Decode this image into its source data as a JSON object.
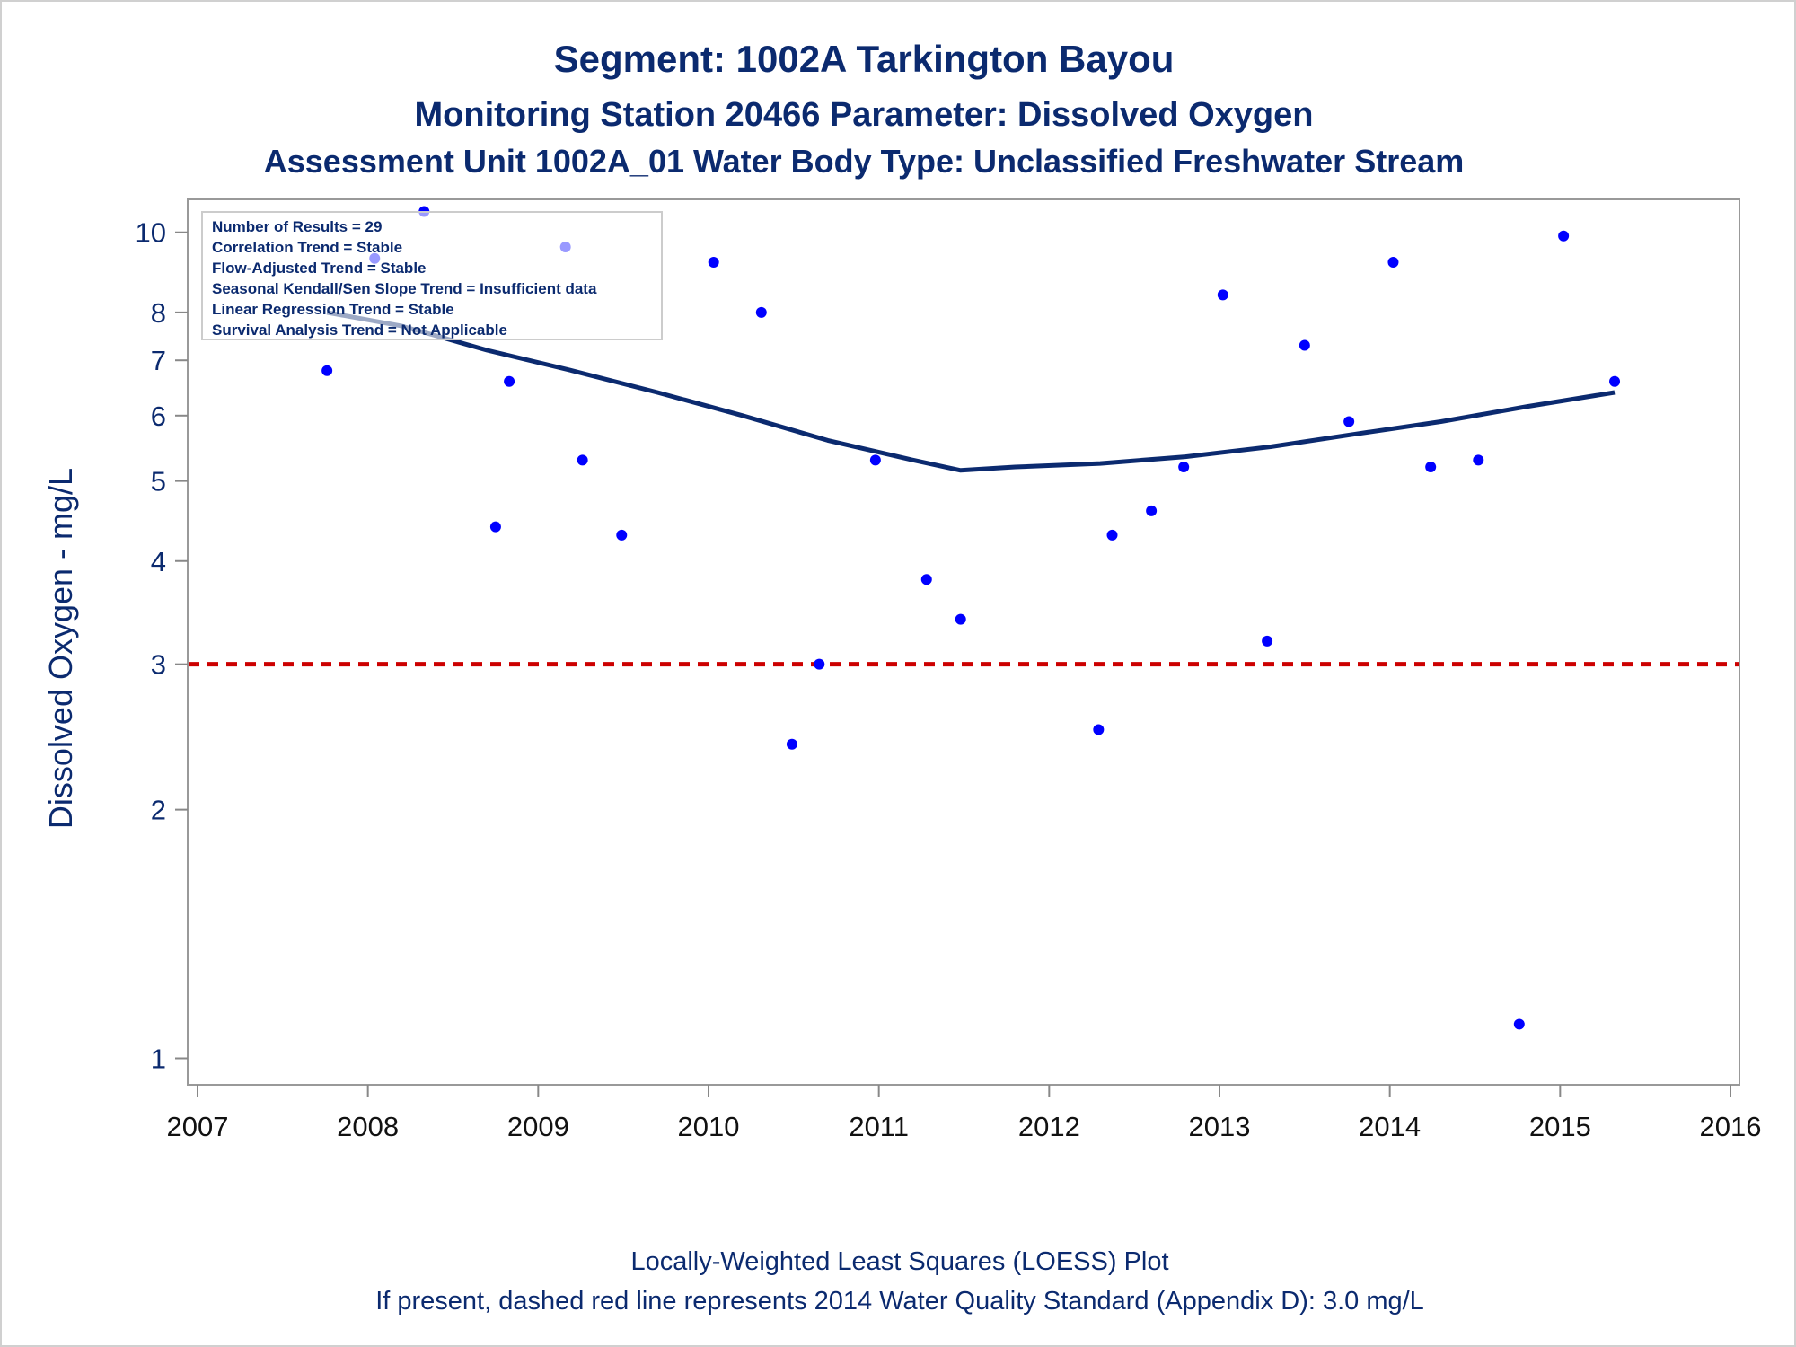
{
  "titles": {
    "line1": "Segment: 1002A  Tarkington Bayou",
    "line2": "Monitoring Station 20466 Parameter: Dissolved Oxygen",
    "line3": "Assessment Unit 1002A_01   Water Body Type: Unclassified Freshwater Stream"
  },
  "footnotes": {
    "line1": "Locally-Weighted Least Squares (LOESS) Plot",
    "line2": "If present, dashed red line represents 2014 Water Quality Standard (Appendix D): 3.0 mg/L"
  },
  "stats_box": [
    "Number of Results = 29",
    "Correlation Trend = Stable",
    "Flow-Adjusted Trend = Stable",
    "Seasonal Kendall/Sen Slope Trend = Insufficient data",
    "Linear Regression Trend = Stable",
    "Survival Analysis Trend = Not Applicable"
  ],
  "chart_data": {
    "type": "scatter",
    "ylabel": "Dissolved Oxygen - mg/L",
    "xlabel": "",
    "y_scale": "log",
    "xlim": [
      2007,
      2016
    ],
    "ylim": [
      0.95,
      10.8
    ],
    "x_ticks": [
      "2007",
      "2008",
      "2009",
      "2010",
      "2011",
      "2012",
      "2013",
      "2014",
      "2015",
      "2016"
    ],
    "y_ticks": [
      1,
      2,
      3,
      4,
      5,
      6,
      7,
      8,
      10
    ],
    "grid": false,
    "legend_placement": "top-left",
    "points": [
      {
        "x": 2007.76,
        "y": 6.8
      },
      {
        "x": 2008.04,
        "y": 9.3
      },
      {
        "x": 2008.33,
        "y": 10.6
      },
      {
        "x": 2008.75,
        "y": 4.4
      },
      {
        "x": 2008.83,
        "y": 6.6
      },
      {
        "x": 2009.16,
        "y": 9.6
      },
      {
        "x": 2009.26,
        "y": 5.3
      },
      {
        "x": 2009.49,
        "y": 4.3
      },
      {
        "x": 2010.03,
        "y": 9.2
      },
      {
        "x": 2010.31,
        "y": 8.0
      },
      {
        "x": 2010.49,
        "y": 2.4
      },
      {
        "x": 2010.65,
        "y": 3.0
      },
      {
        "x": 2010.98,
        "y": 5.3
      },
      {
        "x": 2011.28,
        "y": 3.8
      },
      {
        "x": 2011.48,
        "y": 3.4
      },
      {
        "x": 2012.29,
        "y": 2.5
      },
      {
        "x": 2012.37,
        "y": 4.3
      },
      {
        "x": 2012.6,
        "y": 4.6
      },
      {
        "x": 2012.79,
        "y": 5.2
      },
      {
        "x": 2013.02,
        "y": 8.4
      },
      {
        "x": 2013.28,
        "y": 3.2
      },
      {
        "x": 2013.5,
        "y": 7.3
      },
      {
        "x": 2013.76,
        "y": 5.9
      },
      {
        "x": 2014.02,
        "y": 9.2
      },
      {
        "x": 2014.24,
        "y": 5.2
      },
      {
        "x": 2014.52,
        "y": 5.3
      },
      {
        "x": 2014.76,
        "y": 1.1
      },
      {
        "x": 2015.02,
        "y": 9.9
      },
      {
        "x": 2015.32,
        "y": 6.6
      }
    ],
    "loess": [
      {
        "x": 2007.76,
        "y": 8.0
      },
      {
        "x": 2008.2,
        "y": 7.7
      },
      {
        "x": 2008.7,
        "y": 7.2
      },
      {
        "x": 2009.2,
        "y": 6.8
      },
      {
        "x": 2009.7,
        "y": 6.4
      },
      {
        "x": 2010.2,
        "y": 6.0
      },
      {
        "x": 2010.7,
        "y": 5.6
      },
      {
        "x": 2011.2,
        "y": 5.3
      },
      {
        "x": 2011.48,
        "y": 5.15
      },
      {
        "x": 2011.8,
        "y": 5.2
      },
      {
        "x": 2012.3,
        "y": 5.25
      },
      {
        "x": 2012.8,
        "y": 5.35
      },
      {
        "x": 2013.3,
        "y": 5.5
      },
      {
        "x": 2013.8,
        "y": 5.7
      },
      {
        "x": 2014.3,
        "y": 5.9
      },
      {
        "x": 2014.8,
        "y": 6.15
      },
      {
        "x": 2015.32,
        "y": 6.4
      }
    ],
    "reference_line": {
      "y": 3.0
    },
    "colors": {
      "points": "#0000ff",
      "loess": "#0b2a6f",
      "reference": "#cc0000",
      "text": "#0b2a6f",
      "axis": "#888888"
    }
  }
}
